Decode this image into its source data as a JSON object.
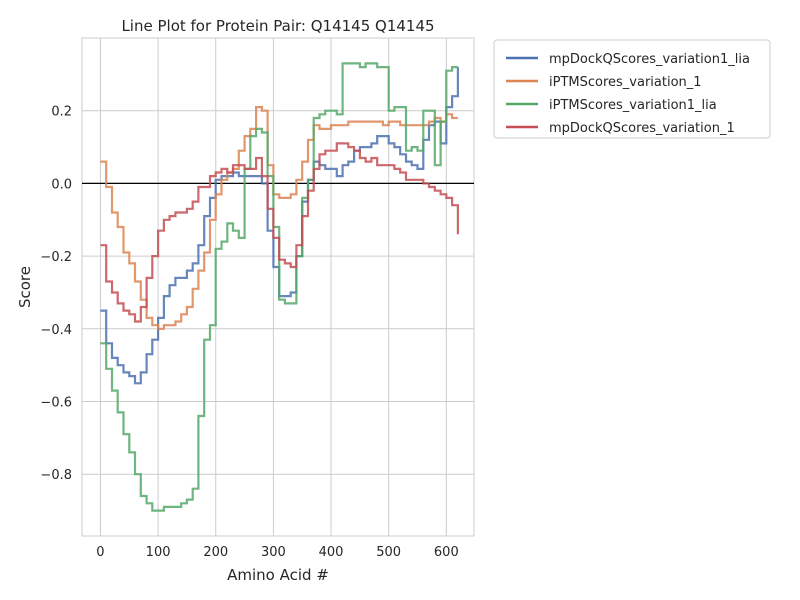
{
  "chart_data": {
    "type": "line",
    "title": "Line Plot for Protein Pair: Q14145 Q14145",
    "xlabel": "Amino Acid #",
    "ylabel": "Score",
    "xlim": [
      -32,
      648
    ],
    "ylim": [
      -0.97,
      0.4
    ],
    "xticks": [
      0,
      100,
      200,
      300,
      400,
      500,
      600
    ],
    "xtick_labels": [
      "0",
      "100",
      "200",
      "300",
      "400",
      "500",
      "600"
    ],
    "yticks": [
      -0.8,
      -0.6,
      -0.4,
      -0.2,
      0.0,
      0.2
    ],
    "ytick_labels": [
      "−0.8",
      "−0.6",
      "−0.4",
      "−0.2",
      "0.0",
      "0.2"
    ],
    "grid": true,
    "zero_line": true,
    "legend_position": "outside-upper-right",
    "step": "post",
    "series": [
      {
        "name": "mpDockQScores_variation1_lia",
        "color": "#4c72b0",
        "x": [
          0,
          10,
          20,
          30,
          40,
          50,
          60,
          70,
          80,
          90,
          100,
          110,
          120,
          130,
          140,
          150,
          160,
          170,
          180,
          190,
          200,
          210,
          220,
          230,
          240,
          250,
          260,
          270,
          280,
          290,
          300,
          310,
          320,
          330,
          340,
          350,
          360,
          370,
          380,
          390,
          400,
          410,
          420,
          430,
          440,
          450,
          460,
          470,
          480,
          490,
          500,
          510,
          520,
          530,
          540,
          550,
          560,
          570,
          580,
          590,
          600,
          610,
          620
        ],
        "y": [
          -0.35,
          -0.44,
          -0.48,
          -0.5,
          -0.52,
          -0.53,
          -0.55,
          -0.52,
          -0.47,
          -0.43,
          -0.37,
          -0.31,
          -0.28,
          -0.26,
          -0.26,
          -0.24,
          -0.22,
          -0.17,
          -0.09,
          -0.04,
          0.01,
          0.02,
          0.02,
          0.03,
          0.02,
          0.02,
          0.02,
          0.02,
          0.0,
          -0.13,
          -0.23,
          -0.31,
          -0.31,
          -0.3,
          -0.2,
          -0.05,
          0.01,
          0.06,
          0.05,
          0.04,
          0.04,
          0.02,
          0.05,
          0.06,
          0.09,
          0.1,
          0.1,
          0.11,
          0.13,
          0.13,
          0.11,
          0.1,
          0.08,
          0.06,
          0.05,
          0.04,
          0.12,
          0.16,
          0.17,
          0.11,
          0.21,
          0.24,
          0.32
        ]
      },
      {
        "name": "iPTMScores_variation_1",
        "color": "#dd8452",
        "x": [
          0,
          10,
          20,
          30,
          40,
          50,
          60,
          70,
          80,
          90,
          100,
          110,
          120,
          130,
          140,
          150,
          160,
          170,
          180,
          190,
          200,
          210,
          220,
          230,
          240,
          250,
          260,
          270,
          280,
          290,
          300,
          310,
          320,
          330,
          340,
          350,
          360,
          370,
          380,
          390,
          400,
          410,
          420,
          430,
          440,
          450,
          460,
          470,
          480,
          490,
          500,
          510,
          520,
          530,
          540,
          550,
          560,
          570,
          580,
          590,
          600,
          610,
          620
        ],
        "y": [
          0.06,
          -0.01,
          -0.08,
          -0.12,
          -0.19,
          -0.22,
          -0.27,
          -0.32,
          -0.37,
          -0.39,
          -0.4,
          -0.39,
          -0.39,
          -0.38,
          -0.36,
          -0.34,
          -0.29,
          -0.24,
          -0.19,
          -0.1,
          -0.03,
          0.01,
          0.03,
          0.04,
          0.09,
          0.13,
          0.15,
          0.21,
          0.2,
          0.05,
          -0.03,
          -0.04,
          -0.04,
          -0.03,
          0.01,
          0.06,
          0.12,
          0.16,
          0.15,
          0.15,
          0.16,
          0.16,
          0.16,
          0.17,
          0.17,
          0.17,
          0.17,
          0.17,
          0.17,
          0.16,
          0.17,
          0.17,
          0.16,
          0.16,
          0.16,
          0.16,
          0.16,
          0.17,
          0.18,
          0.17,
          0.19,
          0.18,
          0.18
        ]
      },
      {
        "name": "iPTMScores_variation1_lia",
        "color": "#55a868",
        "x": [
          0,
          10,
          20,
          30,
          40,
          50,
          60,
          70,
          80,
          90,
          100,
          110,
          120,
          130,
          140,
          150,
          160,
          170,
          180,
          190,
          200,
          210,
          220,
          230,
          240,
          250,
          260,
          270,
          280,
          290,
          300,
          310,
          320,
          330,
          340,
          350,
          360,
          370,
          380,
          390,
          400,
          410,
          420,
          430,
          440,
          450,
          460,
          470,
          480,
          490,
          500,
          510,
          520,
          530,
          540,
          550,
          560,
          570,
          580,
          590,
          600,
          610,
          620
        ],
        "y": [
          -0.44,
          -0.51,
          -0.57,
          -0.63,
          -0.69,
          -0.74,
          -0.8,
          -0.86,
          -0.88,
          -0.9,
          -0.9,
          -0.89,
          -0.89,
          -0.89,
          -0.88,
          -0.87,
          -0.84,
          -0.64,
          -0.43,
          -0.39,
          -0.18,
          -0.16,
          -0.11,
          -0.13,
          -0.15,
          0.04,
          0.13,
          0.15,
          0.14,
          0.02,
          -0.12,
          -0.32,
          -0.33,
          -0.33,
          -0.2,
          -0.04,
          0.01,
          0.18,
          0.19,
          0.2,
          0.2,
          0.19,
          0.33,
          0.33,
          0.33,
          0.32,
          0.33,
          0.33,
          0.32,
          0.32,
          0.2,
          0.21,
          0.21,
          0.09,
          0.1,
          0.09,
          0.2,
          0.2,
          0.05,
          0.17,
          0.31,
          0.32,
          0.32
        ]
      },
      {
        "name": "mpDockQScores_variation_1",
        "color": "#c44e52",
        "x": [
          0,
          10,
          20,
          30,
          40,
          50,
          60,
          70,
          80,
          90,
          100,
          110,
          120,
          130,
          140,
          150,
          160,
          170,
          180,
          190,
          200,
          210,
          220,
          230,
          240,
          250,
          260,
          270,
          280,
          290,
          300,
          310,
          320,
          330,
          340,
          350,
          360,
          370,
          380,
          390,
          400,
          410,
          420,
          430,
          440,
          450,
          460,
          470,
          480,
          490,
          500,
          510,
          520,
          530,
          540,
          550,
          560,
          570,
          580,
          590,
          600,
          610,
          620
        ],
        "y": [
          -0.17,
          -0.27,
          -0.3,
          -0.33,
          -0.35,
          -0.36,
          -0.38,
          -0.34,
          -0.26,
          -0.2,
          -0.13,
          -0.1,
          -0.09,
          -0.08,
          -0.08,
          -0.07,
          -0.05,
          -0.01,
          -0.01,
          0.02,
          0.03,
          0.04,
          0.03,
          0.05,
          0.05,
          0.04,
          0.04,
          0.07,
          0.02,
          -0.07,
          -0.15,
          -0.21,
          -0.22,
          -0.23,
          -0.17,
          -0.09,
          -0.02,
          0.04,
          0.08,
          0.09,
          0.09,
          0.11,
          0.11,
          0.1,
          0.09,
          0.07,
          0.06,
          0.07,
          0.05,
          0.05,
          0.05,
          0.04,
          0.03,
          0.01,
          0.01,
          0.01,
          0.0,
          -0.01,
          -0.02,
          -0.03,
          -0.04,
          -0.06,
          -0.14
        ]
      }
    ]
  }
}
